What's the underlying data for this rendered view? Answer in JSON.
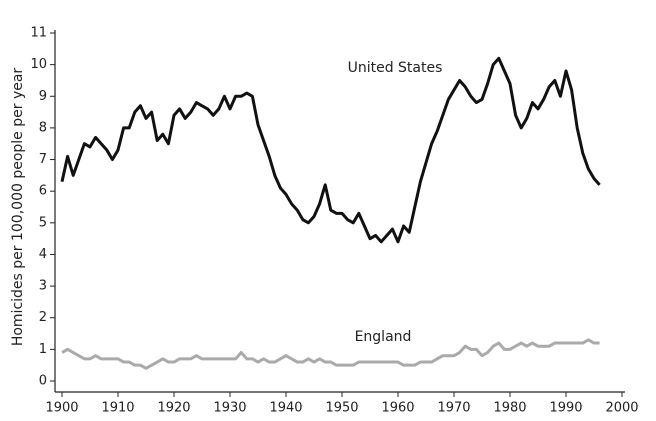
{
  "chart_data": {
    "type": "line",
    "y_label": "Homicides per 100,000 people per year",
    "x": [
      1900,
      1901,
      1902,
      1903,
      1904,
      1905,
      1906,
      1907,
      1908,
      1909,
      1910,
      1911,
      1912,
      1913,
      1914,
      1915,
      1916,
      1917,
      1918,
      1919,
      1920,
      1921,
      1922,
      1923,
      1924,
      1925,
      1926,
      1927,
      1928,
      1929,
      1930,
      1931,
      1932,
      1933,
      1934,
      1935,
      1936,
      1937,
      1938,
      1939,
      1940,
      1941,
      1942,
      1943,
      1944,
      1945,
      1946,
      1947,
      1948,
      1949,
      1950,
      1951,
      1952,
      1953,
      1954,
      1955,
      1956,
      1957,
      1958,
      1959,
      1960,
      1961,
      1962,
      1963,
      1964,
      1965,
      1966,
      1967,
      1968,
      1969,
      1970,
      1971,
      1972,
      1973,
      1974,
      1975,
      1976,
      1977,
      1978,
      1979,
      1980,
      1981,
      1982,
      1983,
      1984,
      1985,
      1986,
      1987,
      1988,
      1989,
      1990,
      1991,
      1992,
      1993,
      1994,
      1995,
      1996
    ],
    "series": [
      {
        "name": "United States",
        "color": "#111111",
        "values": [
          6.3,
          7.1,
          6.5,
          7.0,
          7.5,
          7.4,
          7.7,
          7.5,
          7.3,
          7.0,
          7.3,
          8.0,
          8.0,
          8.5,
          8.7,
          8.3,
          8.5,
          7.6,
          7.8,
          7.5,
          8.4,
          8.6,
          8.3,
          8.5,
          8.8,
          8.7,
          8.6,
          8.4,
          8.6,
          9.0,
          8.6,
          9.0,
          9.0,
          9.1,
          9.0,
          8.1,
          7.6,
          7.1,
          6.5,
          6.1,
          5.9,
          5.6,
          5.4,
          5.1,
          5.0,
          5.2,
          5.6,
          6.2,
          5.4,
          5.3,
          5.3,
          5.1,
          5.0,
          5.3,
          4.9,
          4.5,
          4.6,
          4.4,
          4.6,
          4.8,
          4.4,
          4.9,
          4.7,
          5.5,
          6.3,
          6.9,
          7.5,
          7.9,
          8.4,
          8.9,
          9.2,
          9.5,
          9.3,
          9.0,
          8.8,
          8.9,
          9.4,
          10.0,
          10.2,
          9.8,
          9.4,
          8.4,
          8.0,
          8.3,
          8.8,
          8.6,
          8.9,
          9.3,
          9.5,
          9.0,
          9.8,
          9.2,
          8.0,
          7.2,
          6.7,
          6.4,
          6.2
        ]
      },
      {
        "name": "England",
        "color": "#aaaaaa",
        "values": [
          0.9,
          1.0,
          0.9,
          0.8,
          0.7,
          0.7,
          0.8,
          0.7,
          0.7,
          0.7,
          0.7,
          0.6,
          0.6,
          0.5,
          0.5,
          0.4,
          0.5,
          0.6,
          0.7,
          0.6,
          0.6,
          0.7,
          0.7,
          0.7,
          0.8,
          0.7,
          0.7,
          0.7,
          0.7,
          0.7,
          0.7,
          0.7,
          0.9,
          0.7,
          0.7,
          0.6,
          0.7,
          0.6,
          0.6,
          0.7,
          0.8,
          0.7,
          0.6,
          0.6,
          0.7,
          0.6,
          0.7,
          0.6,
          0.6,
          0.5,
          0.5,
          0.5,
          0.5,
          0.6,
          0.6,
          0.6,
          0.6,
          0.6,
          0.6,
          0.6,
          0.6,
          0.5,
          0.5,
          0.5,
          0.6,
          0.6,
          0.6,
          0.7,
          0.8,
          0.8,
          0.8,
          0.9,
          1.1,
          1.0,
          1.0,
          0.8,
          0.9,
          1.1,
          1.2,
          1.0,
          1.0,
          1.1,
          1.2,
          1.1,
          1.2,
          1.1,
          1.1,
          1.1,
          1.2,
          1.2,
          1.2,
          1.2,
          1.2,
          1.2,
          1.3,
          1.2,
          1.2
        ]
      }
    ],
    "xlim": [
      1900,
      2000
    ],
    "xticks": [
      1900,
      1910,
      1920,
      1930,
      1940,
      1950,
      1960,
      1970,
      1980,
      1990,
      2000
    ],
    "ylim": [
      0,
      11
    ],
    "yticks": [
      0,
      1,
      2,
      3,
      4,
      5,
      6,
      7,
      8,
      9,
      10,
      11
    ],
    "grid": false
  }
}
